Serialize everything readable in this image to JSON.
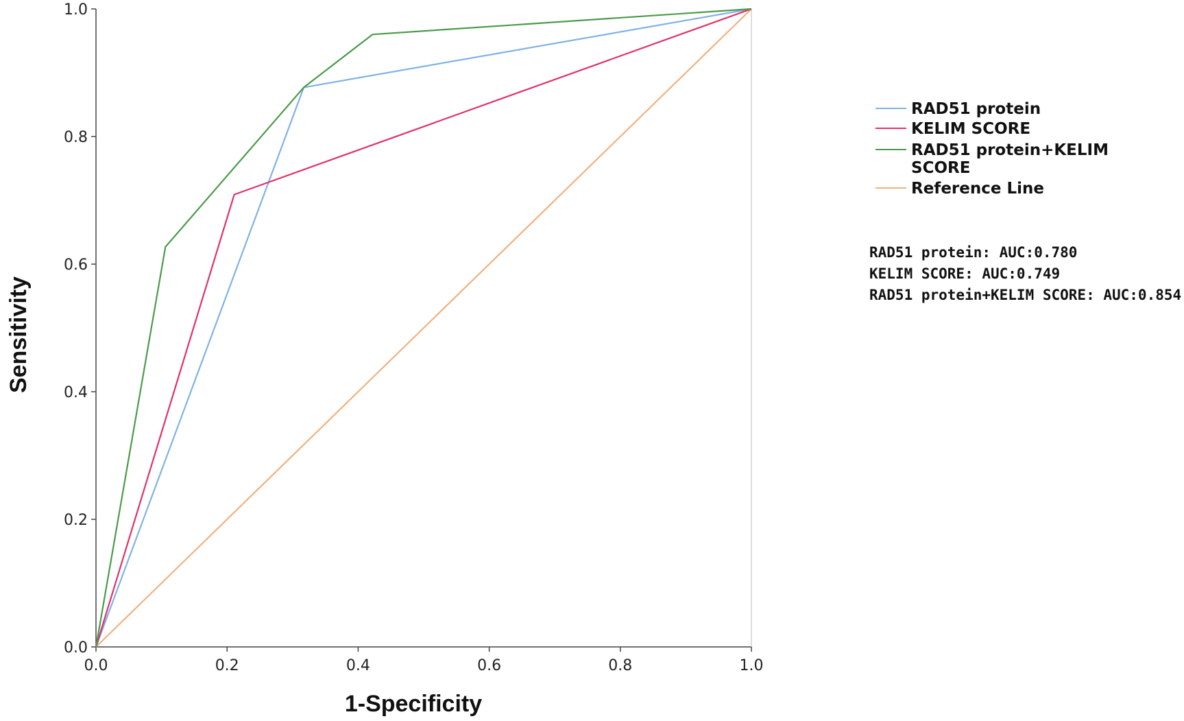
{
  "chart_data": {
    "type": "line",
    "title": "",
    "xlabel": "1-Specificity",
    "ylabel": "Sensitivity",
    "xlim": [
      0,
      1
    ],
    "ylim": [
      0,
      1
    ],
    "x_ticks": [
      "0.0",
      "0.2",
      "0.4",
      "0.6",
      "0.8",
      "1.0"
    ],
    "y_ticks": [
      "0.0",
      "0.2",
      "0.4",
      "0.6",
      "0.8",
      "1.0"
    ],
    "grid": false,
    "legend_position": "right",
    "series": [
      {
        "name": "RAD51 protein",
        "color": "#7fb2e5",
        "points": [
          [
            0,
            0
          ],
          [
            0.317,
            0.877
          ],
          [
            1,
            1
          ]
        ]
      },
      {
        "name": "KELIM SCORE",
        "color": "#e0306a",
        "points": [
          [
            0,
            0
          ],
          [
            0.211,
            0.709
          ],
          [
            1,
            1
          ]
        ]
      },
      {
        "name": "RAD51 protein+KELIM SCORE",
        "color": "#4a9a4a",
        "points": [
          [
            0,
            0
          ],
          [
            0.106,
            0.627
          ],
          [
            0.317,
            0.877
          ],
          [
            0.422,
            0.96
          ],
          [
            1,
            1
          ]
        ]
      },
      {
        "name": "Reference Line",
        "color": "#f2b07e",
        "points": [
          [
            0,
            0
          ],
          [
            1,
            1
          ]
        ]
      }
    ],
    "legend_labels": [
      {
        "lines": [
          "RAD51 protein"
        ],
        "color": "#7fb2e5"
      },
      {
        "lines": [
          "KELIM SCORE"
        ],
        "color": "#e0306a"
      },
      {
        "lines": [
          "RAD51 protein+KELIM",
          "SCORE"
        ],
        "color": "#4a9a4a"
      },
      {
        "lines": [
          "Reference Line"
        ],
        "color": "#f2b07e"
      }
    ],
    "annotations": [
      "RAD51 protein: AUC:0.780",
      "KELIM SCORE: AUC:0.749",
      "RAD51 protein+KELIM SCORE: AUC:0.854"
    ]
  }
}
